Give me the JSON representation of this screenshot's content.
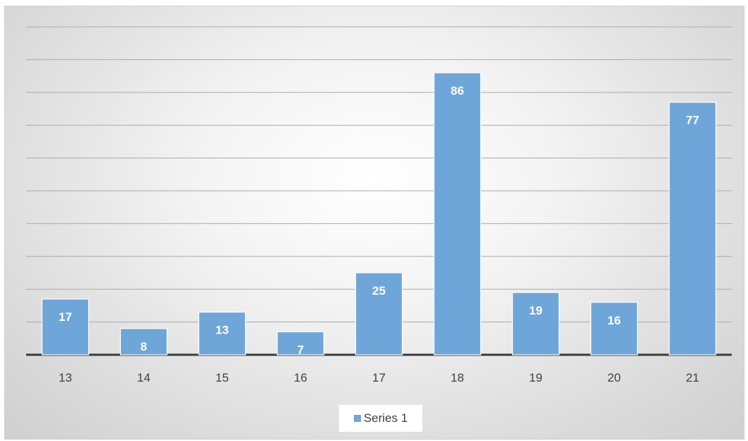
{
  "chart_data": {
    "type": "bar",
    "categories": [
      "13",
      "14",
      "15",
      "16",
      "17",
      "18",
      "19",
      "20",
      "21"
    ],
    "series": [
      {
        "name": "Series 1",
        "values": [
          17,
          8,
          13,
          7,
          25,
          86,
          19,
          16,
          77
        ]
      }
    ],
    "title": "",
    "xlabel": "",
    "ylabel": "",
    "ylim": [
      0,
      100
    ],
    "grid": true,
    "legend": "bottom",
    "data_labels": true
  },
  "colors": {
    "bar": "#6fa6d9",
    "bar_border": "#ffffff",
    "gridline": "#a9a9a9",
    "axis": "#3a3a3a"
  },
  "legend": {
    "label": "Series 1"
  }
}
